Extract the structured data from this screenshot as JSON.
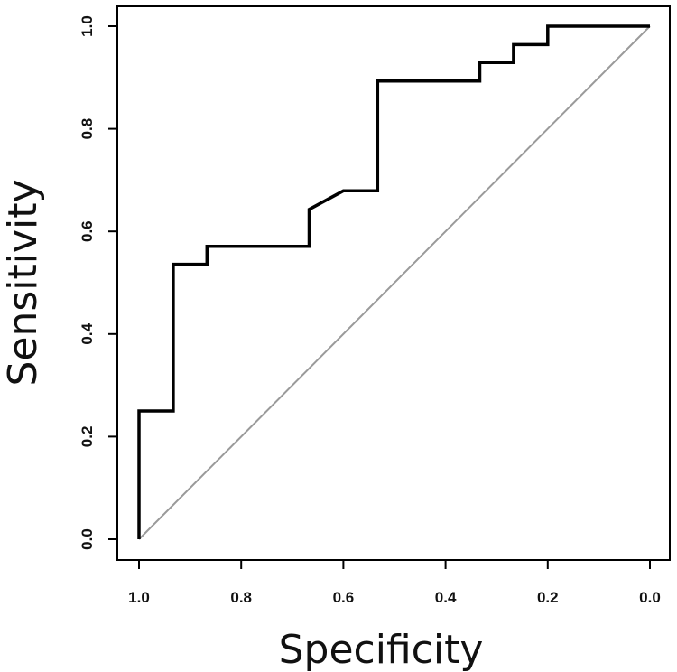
{
  "chart_data": {
    "type": "line",
    "title": "",
    "xlabel": "Specificity",
    "ylabel": "Sensitivity",
    "x_reversed": true,
    "xlim": [
      1.0,
      0.0
    ],
    "ylim": [
      0.0,
      1.0
    ],
    "grid": false,
    "legend": "none",
    "x_ticks": [
      "1.0",
      "0.8",
      "0.6",
      "0.4",
      "0.2",
      "0.0"
    ],
    "y_ticks": [
      "0.0",
      "0.2",
      "0.4",
      "0.6",
      "0.8",
      "1.0"
    ],
    "series": [
      {
        "x": [
          1.0,
          1.0,
          0.933,
          0.933,
          0.867,
          0.867,
          0.667,
          0.667,
          0.6,
          0.533,
          0.533,
          0.333,
          0.333,
          0.267,
          0.267,
          0.2,
          0.2,
          0.0
        ],
        "y": [
          0.0,
          0.25,
          0.25,
          0.536,
          0.536,
          0.571,
          0.571,
          0.643,
          0.679,
          0.679,
          0.893,
          0.893,
          0.929,
          0.929,
          0.964,
          0.964,
          1.0,
          1.0
        ],
        "color": "#000000"
      }
    ],
    "reference_line": {
      "from": [
        1.0,
        0.0
      ],
      "to": [
        0.0,
        1.0
      ],
      "color": "#9a9a9a"
    }
  }
}
